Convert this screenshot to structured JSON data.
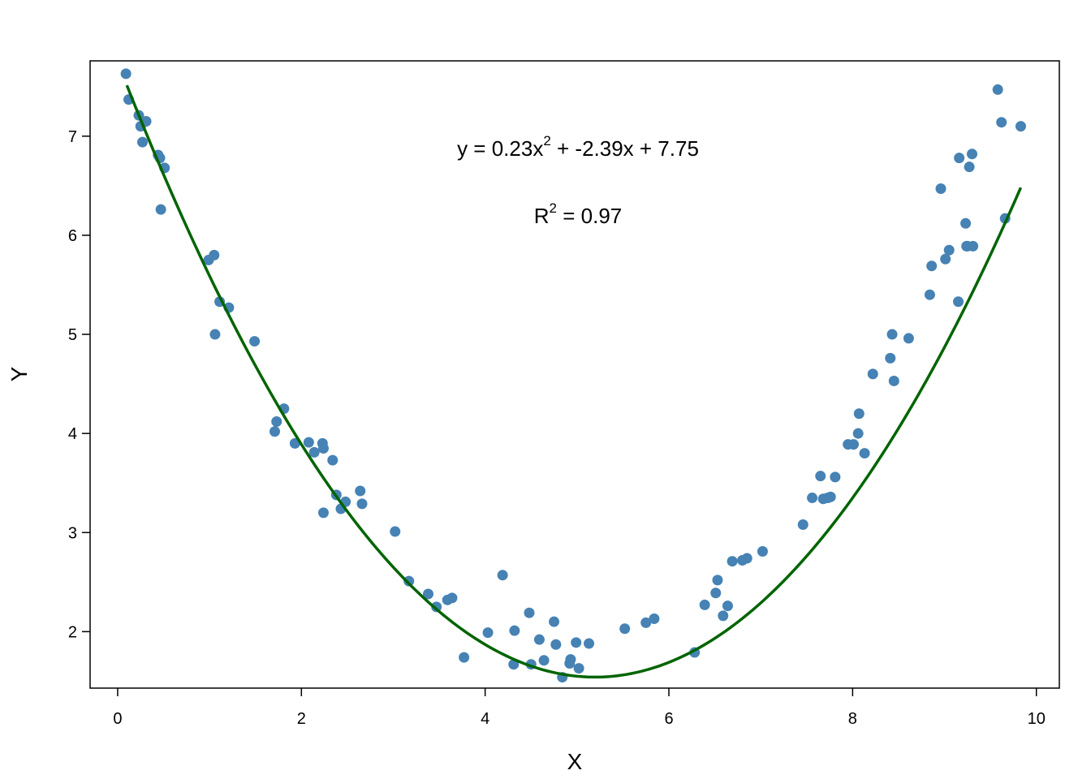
{
  "chart_data": {
    "type": "scatter",
    "xlabel": "X",
    "ylabel": "Y",
    "xlim": [
      -0.3,
      10.25
    ],
    "ylim": [
      1.43,
      7.76
    ],
    "xticks": [
      0,
      2,
      4,
      6,
      8,
      10
    ],
    "yticks": [
      2,
      3,
      4,
      5,
      6,
      7
    ],
    "grid": false,
    "colors": {
      "points": "#4682B4",
      "fit": "#006400"
    },
    "fit": {
      "a": 0.23,
      "b": -2.39,
      "c": 7.75,
      "x_range": [
        0.1,
        9.83
      ]
    },
    "annotations": {
      "equation": {
        "prefix": "y = 0.23x",
        "exponent": "2",
        "suffix": " + -2.39x + 7.75"
      },
      "r2": {
        "prefix": "R",
        "exponent": "2",
        "suffix": " = 0.97"
      }
    },
    "points": {
      "x": [
        0.09,
        0.12,
        0.23,
        0.25,
        0.27,
        0.31,
        0.44,
        0.46,
        0.47,
        0.51,
        0.99,
        1.05,
        1.06,
        1.11,
        1.21,
        1.49,
        1.71,
        1.73,
        1.81,
        1.93,
        2.08,
        2.14,
        2.23,
        2.24,
        2.24,
        2.34,
        2.38,
        2.43,
        2.48,
        2.64,
        2.66,
        3.02,
        3.17,
        3.38,
        3.47,
        3.59,
        3.64,
        3.77,
        4.03,
        4.19,
        4.31,
        4.32,
        4.48,
        4.5,
        4.59,
        4.64,
        4.75,
        4.77,
        4.84,
        4.92,
        4.93,
        4.99,
        5.02,
        5.13,
        5.52,
        5.75,
        5.84,
        6.28,
        6.39,
        6.51,
        6.53,
        6.59,
        6.64,
        6.69,
        6.8,
        6.85,
        7.02,
        7.46,
        7.56,
        7.65,
        7.68,
        7.73,
        7.76,
        7.81,
        7.95,
        8.01,
        8.06,
        8.07,
        8.13,
        8.22,
        8.41,
        8.43,
        8.45,
        8.61,
        8.84,
        8.86,
        8.96,
        9.01,
        9.05,
        9.15,
        9.16,
        9.23,
        9.24,
        9.25,
        9.27,
        9.3,
        9.31,
        9.58,
        9.62,
        9.66,
        9.83
      ],
      "y": [
        7.63,
        7.37,
        7.21,
        7.1,
        6.94,
        7.15,
        6.81,
        6.78,
        6.26,
        6.68,
        5.75,
        5.8,
        5.0,
        5.33,
        5.27,
        4.93,
        4.02,
        4.12,
        4.25,
        3.9,
        3.91,
        3.81,
        3.9,
        3.85,
        3.2,
        3.73,
        3.38,
        3.24,
        3.31,
        3.42,
        3.29,
        3.01,
        2.51,
        2.38,
        2.25,
        2.32,
        2.34,
        1.74,
        1.99,
        2.57,
        1.67,
        2.01,
        2.19,
        1.67,
        1.92,
        1.71,
        2.1,
        1.87,
        1.54,
        1.68,
        1.72,
        1.89,
        1.63,
        1.88,
        2.03,
        2.09,
        2.13,
        1.79,
        2.27,
        2.39,
        2.52,
        2.16,
        2.26,
        2.71,
        2.72,
        2.74,
        2.81,
        3.08,
        3.35,
        3.57,
        3.34,
        3.35,
        3.36,
        3.56,
        3.89,
        3.89,
        4.0,
        4.2,
        3.8,
        4.6,
        4.76,
        5.0,
        4.53,
        4.96,
        5.4,
        5.69,
        6.47,
        5.76,
        5.85,
        5.33,
        6.78,
        6.12,
        5.89,
        5.89,
        6.69,
        6.82,
        5.89,
        7.47,
        7.14,
        6.17,
        7.1
      ]
    }
  }
}
